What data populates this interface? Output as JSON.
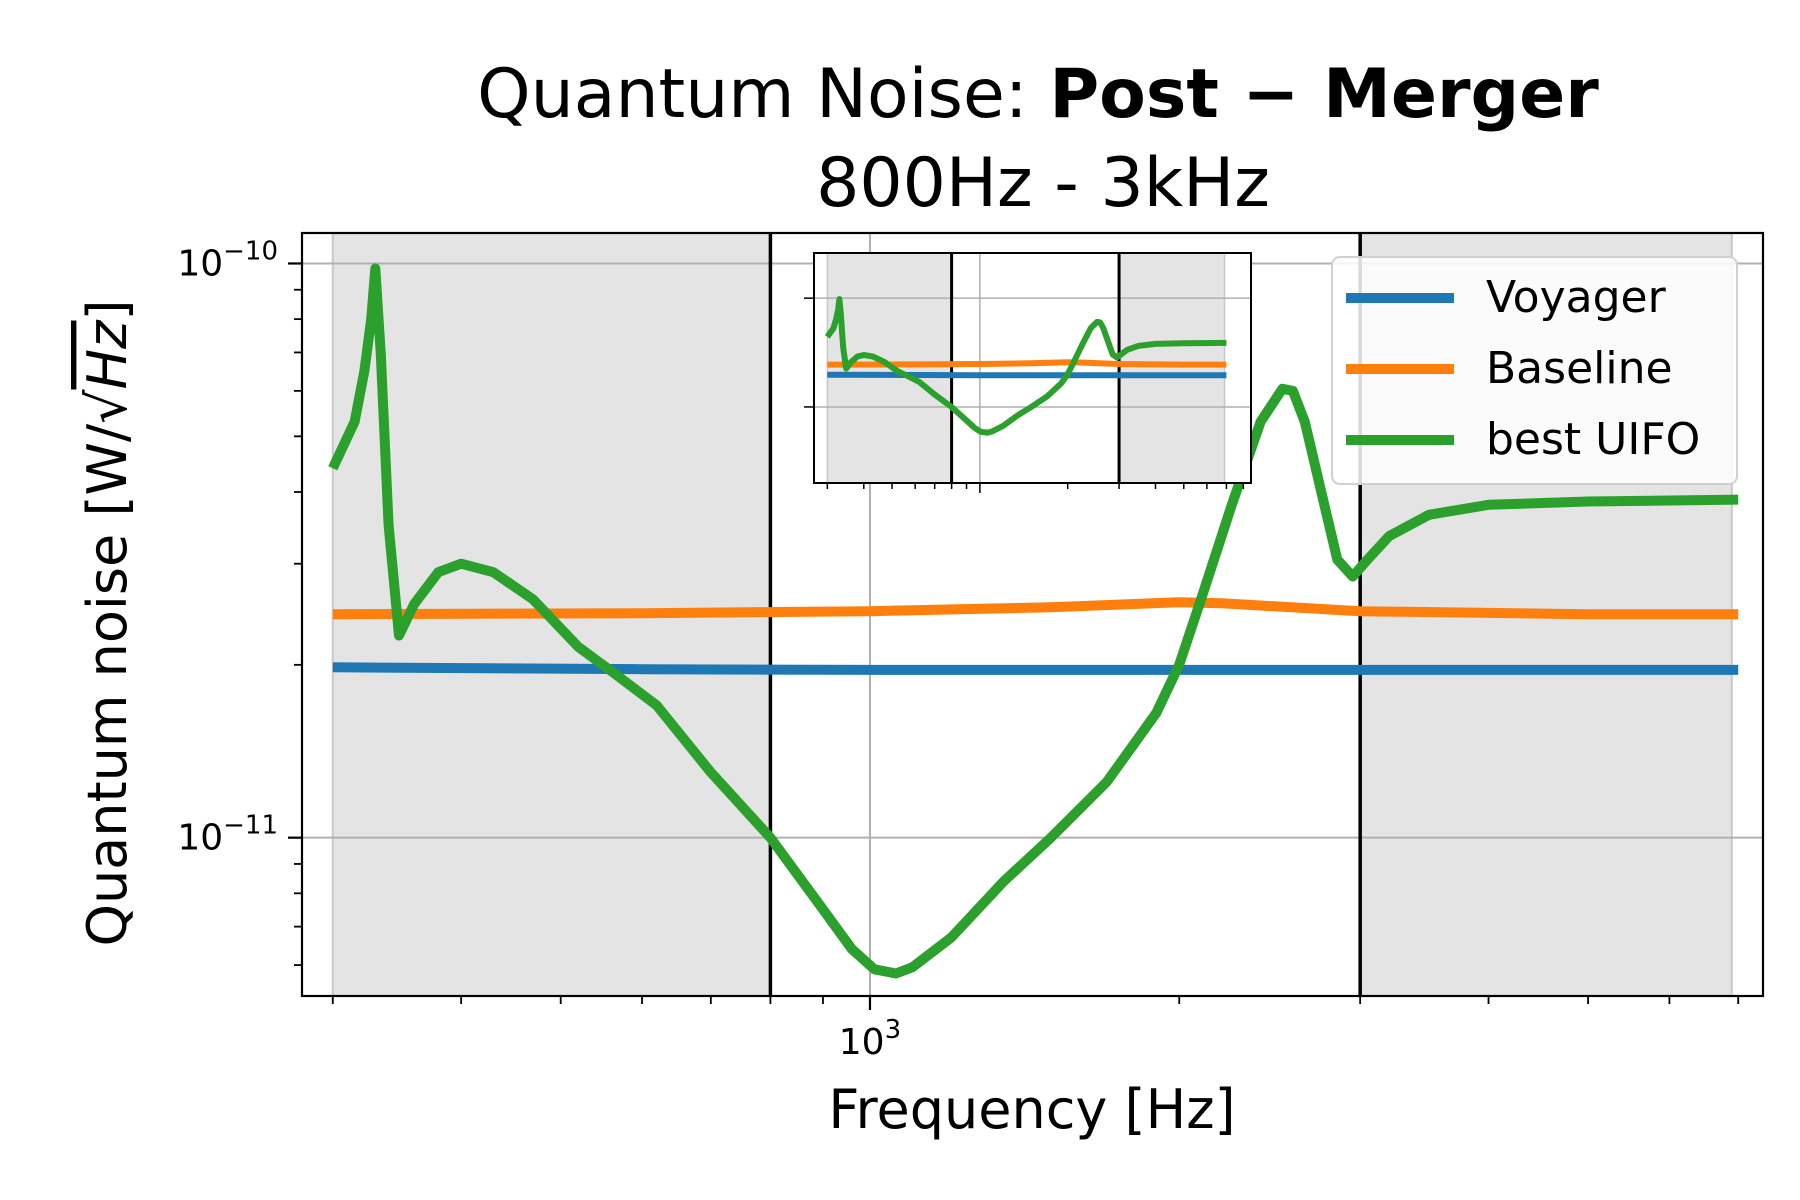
{
  "chart_data": {
    "type": "line",
    "title_prefix": "Quantum Noise: ",
    "title_bold": "Post − Merger",
    "subtitle": "800Hz - 3kHz",
    "xlabel": "Frequency [Hz]",
    "ylabel_main": "Quantum noise [W/",
    "ylabel_radicand": "Hz",
    "ylabel_close": "]",
    "x_scale": "log",
    "y_scale": "log",
    "xlim": [
      280,
      7400
    ],
    "ylim": [
      5.3e-12,
      1.13e-10
    ],
    "x_tick_labels": [
      {
        "value": 1000,
        "base": "10",
        "exp": "3"
      }
    ],
    "y_tick_labels": [
      {
        "value": 1e-10,
        "base": "10",
        "exp": "−10"
      },
      {
        "value": 1e-11,
        "base": "10",
        "exp": "−11"
      }
    ],
    "grid": true,
    "shaded_regions": [
      [
        300,
        800
      ],
      [
        3000,
        6900
      ]
    ],
    "vertical_lines": [
      800,
      3000
    ],
    "legend_position": "top-right",
    "series": [
      {
        "name": "Voyager",
        "color": "#1f77b4",
        "x": [
          300,
          600,
          1000,
          2000,
          3000,
          5000,
          7000
        ],
        "y": [
          1.98e-11,
          1.965e-11,
          1.96e-11,
          1.96e-11,
          1.96e-11,
          1.96e-11,
          1.96e-11
        ]
      },
      {
        "name": "Baseline",
        "color": "#ff7f0e",
        "x": [
          300,
          600,
          1000,
          1500,
          2000,
          2200,
          3000,
          5000,
          7000
        ],
        "y": [
          2.45e-11,
          2.46e-11,
          2.48e-11,
          2.52e-11,
          2.57e-11,
          2.56e-11,
          2.48e-11,
          2.45e-11,
          2.45e-11
        ]
      },
      {
        "name": "best UIFO",
        "color": "#2ca02c",
        "x": [
          300,
          315,
          322,
          327,
          330,
          334,
          340,
          348,
          360,
          380,
          400,
          430,
          470,
          520,
          560,
          620,
          700,
          800,
          900,
          960,
          1010,
          1060,
          1100,
          1200,
          1350,
          1500,
          1700,
          1900,
          2000,
          2100,
          2250,
          2400,
          2520,
          2580,
          2650,
          2750,
          2850,
          2950,
          3050,
          3200,
          3500,
          4000,
          5000,
          7000
        ],
        "y": [
          4.4e-11,
          5.3e-11,
          6.5e-11,
          8e-11,
          9.8e-11,
          7e-11,
          3.5e-11,
          2.25e-11,
          2.55e-11,
          2.9e-11,
          3e-11,
          2.9e-11,
          2.6e-11,
          2.15e-11,
          1.95e-11,
          1.7e-11,
          1.3e-11,
          1e-11,
          7.5e-12,
          6.4e-12,
          5.9e-12,
          5.8e-12,
          5.95e-12,
          6.7e-12,
          8.4e-12,
          1e-11,
          1.25e-11,
          1.65e-11,
          2e-11,
          2.6e-11,
          3.8e-11,
          5.3e-11,
          6.05e-11,
          6e-11,
          5.3e-11,
          4e-11,
          3.05e-11,
          2.85e-11,
          3.05e-11,
          3.35e-11,
          3.65e-11,
          3.8e-11,
          3.85e-11,
          3.88e-11
        ]
      }
    ]
  }
}
